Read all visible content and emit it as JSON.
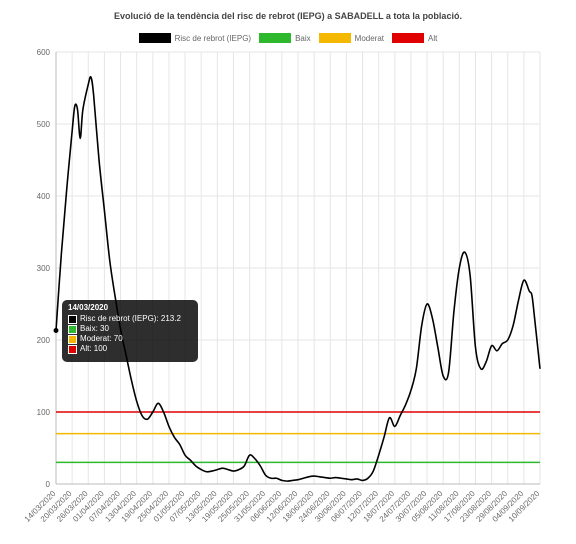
{
  "chart_data": {
    "type": "line",
    "title": "Evolució de la tendència del risc de rebrot (IEPG) a SABADELL a tota la població.",
    "ylim": [
      0,
      600
    ],
    "yticks": [
      0,
      100,
      200,
      300,
      400,
      500,
      600
    ],
    "grid": true,
    "legend_position": "top",
    "x_tick_labels": [
      "14/03/2020",
      "20/03/2020",
      "26/03/2020",
      "01/04/2020",
      "07/04/2020",
      "13/04/2020",
      "19/04/2020",
      "25/04/2020",
      "01/05/2020",
      "07/05/2020",
      "13/05/2020",
      "19/05/2020",
      "25/05/2020",
      "31/05/2020",
      "06/06/2020",
      "12/06/2020",
      "18/06/2020",
      "24/06/2020",
      "30/06/2020",
      "06/07/2020",
      "12/07/2020",
      "18/07/2020",
      "24/07/2020",
      "30/07/2020",
      "05/08/2020",
      "11/08/2020",
      "17/08/2020",
      "23/08/2020",
      "29/08/2020",
      "04/09/2020",
      "10/09/2020"
    ],
    "x_range": [
      "14/03/2020",
      "10/09/2020"
    ],
    "series": [
      {
        "name": "Risc de rebrot (IEPG)",
        "color": "#000000",
        "points": [
          [
            "14/03/2020",
            213.2
          ],
          [
            "16/03/2020",
            320
          ],
          [
            "18/03/2020",
            410
          ],
          [
            "20/03/2020",
            490
          ],
          [
            "21/03/2020",
            525
          ],
          [
            "22/03/2020",
            520
          ],
          [
            "23/03/2020",
            480
          ],
          [
            "24/03/2020",
            520
          ],
          [
            "26/03/2020",
            555
          ],
          [
            "27/03/2020",
            565
          ],
          [
            "28/03/2020",
            540
          ],
          [
            "30/03/2020",
            450
          ],
          [
            "01/04/2020",
            380
          ],
          [
            "03/04/2020",
            310
          ],
          [
            "05/04/2020",
            260
          ],
          [
            "07/04/2020",
            215
          ],
          [
            "09/04/2020",
            180
          ],
          [
            "11/04/2020",
            145
          ],
          [
            "13/04/2020",
            115
          ],
          [
            "15/04/2020",
            95
          ],
          [
            "17/04/2020",
            90
          ],
          [
            "19/04/2020",
            100
          ],
          [
            "21/04/2020",
            112
          ],
          [
            "23/04/2020",
            100
          ],
          [
            "25/04/2020",
            80
          ],
          [
            "27/04/2020",
            65
          ],
          [
            "29/04/2020",
            55
          ],
          [
            "01/05/2020",
            40
          ],
          [
            "03/05/2020",
            33
          ],
          [
            "05/05/2020",
            25
          ],
          [
            "07/05/2020",
            20
          ],
          [
            "09/05/2020",
            17
          ],
          [
            "11/05/2020",
            18
          ],
          [
            "13/05/2020",
            20
          ],
          [
            "15/05/2020",
            22
          ],
          [
            "17/05/2020",
            20
          ],
          [
            "19/05/2020",
            18
          ],
          [
            "21/05/2020",
            20
          ],
          [
            "23/05/2020",
            25
          ],
          [
            "25/05/2020",
            40
          ],
          [
            "27/05/2020",
            35
          ],
          [
            "29/05/2020",
            25
          ],
          [
            "31/05/2020",
            12
          ],
          [
            "02/06/2020",
            8
          ],
          [
            "04/06/2020",
            8
          ],
          [
            "06/06/2020",
            5
          ],
          [
            "08/06/2020",
            4
          ],
          [
            "10/06/2020",
            5
          ],
          [
            "12/06/2020",
            6
          ],
          [
            "14/06/2020",
            8
          ],
          [
            "16/06/2020",
            10
          ],
          [
            "18/06/2020",
            11
          ],
          [
            "20/06/2020",
            10
          ],
          [
            "22/06/2020",
            9
          ],
          [
            "24/06/2020",
            8
          ],
          [
            "26/06/2020",
            9
          ],
          [
            "28/06/2020",
            8
          ],
          [
            "30/06/2020",
            7
          ],
          [
            "02/07/2020",
            6
          ],
          [
            "04/07/2020",
            7
          ],
          [
            "06/07/2020",
            5
          ],
          [
            "08/07/2020",
            8
          ],
          [
            "10/07/2020",
            18
          ],
          [
            "12/07/2020",
            40
          ],
          [
            "14/07/2020",
            65
          ],
          [
            "16/07/2020",
            92
          ],
          [
            "18/07/2020",
            80
          ],
          [
            "20/07/2020",
            95
          ],
          [
            "22/07/2020",
            110
          ],
          [
            "24/07/2020",
            130
          ],
          [
            "26/07/2020",
            160
          ],
          [
            "28/07/2020",
            220
          ],
          [
            "30/07/2020",
            250
          ],
          [
            "01/08/2020",
            230
          ],
          [
            "03/08/2020",
            190
          ],
          [
            "05/08/2020",
            150
          ],
          [
            "07/08/2020",
            155
          ],
          [
            "09/08/2020",
            240
          ],
          [
            "11/08/2020",
            300
          ],
          [
            "13/08/2020",
            322
          ],
          [
            "15/08/2020",
            290
          ],
          [
            "17/08/2020",
            190
          ],
          [
            "19/08/2020",
            160
          ],
          [
            "21/08/2020",
            170
          ],
          [
            "23/08/2020",
            192
          ],
          [
            "25/08/2020",
            185
          ],
          [
            "27/08/2020",
            195
          ],
          [
            "29/08/2020",
            200
          ],
          [
            "31/08/2020",
            220
          ],
          [
            "02/09/2020",
            255
          ],
          [
            "04/09/2020",
            283
          ],
          [
            "06/09/2020",
            268
          ],
          [
            "07/09/2020",
            262
          ],
          [
            "08/09/2020",
            230
          ],
          [
            "10/09/2020",
            160
          ]
        ]
      },
      {
        "name": "Baix",
        "color": "#2db82d",
        "constant": 30
      },
      {
        "name": "Moderat",
        "color": "#f5b800",
        "constant": 70
      },
      {
        "name": "Alt",
        "color": "#e00000",
        "constant": 100
      }
    ],
    "tooltip": {
      "title": "14/03/2020",
      "rows": [
        {
          "text": "Risc de rebrot (IEPG): 213.2",
          "color": "#000000"
        },
        {
          "text": "Baix: 30",
          "color": "#2db82d"
        },
        {
          "text": "Moderat: 70",
          "color": "#f5b800"
        },
        {
          "text": "Alt: 100",
          "color": "#e00000"
        }
      ]
    }
  }
}
